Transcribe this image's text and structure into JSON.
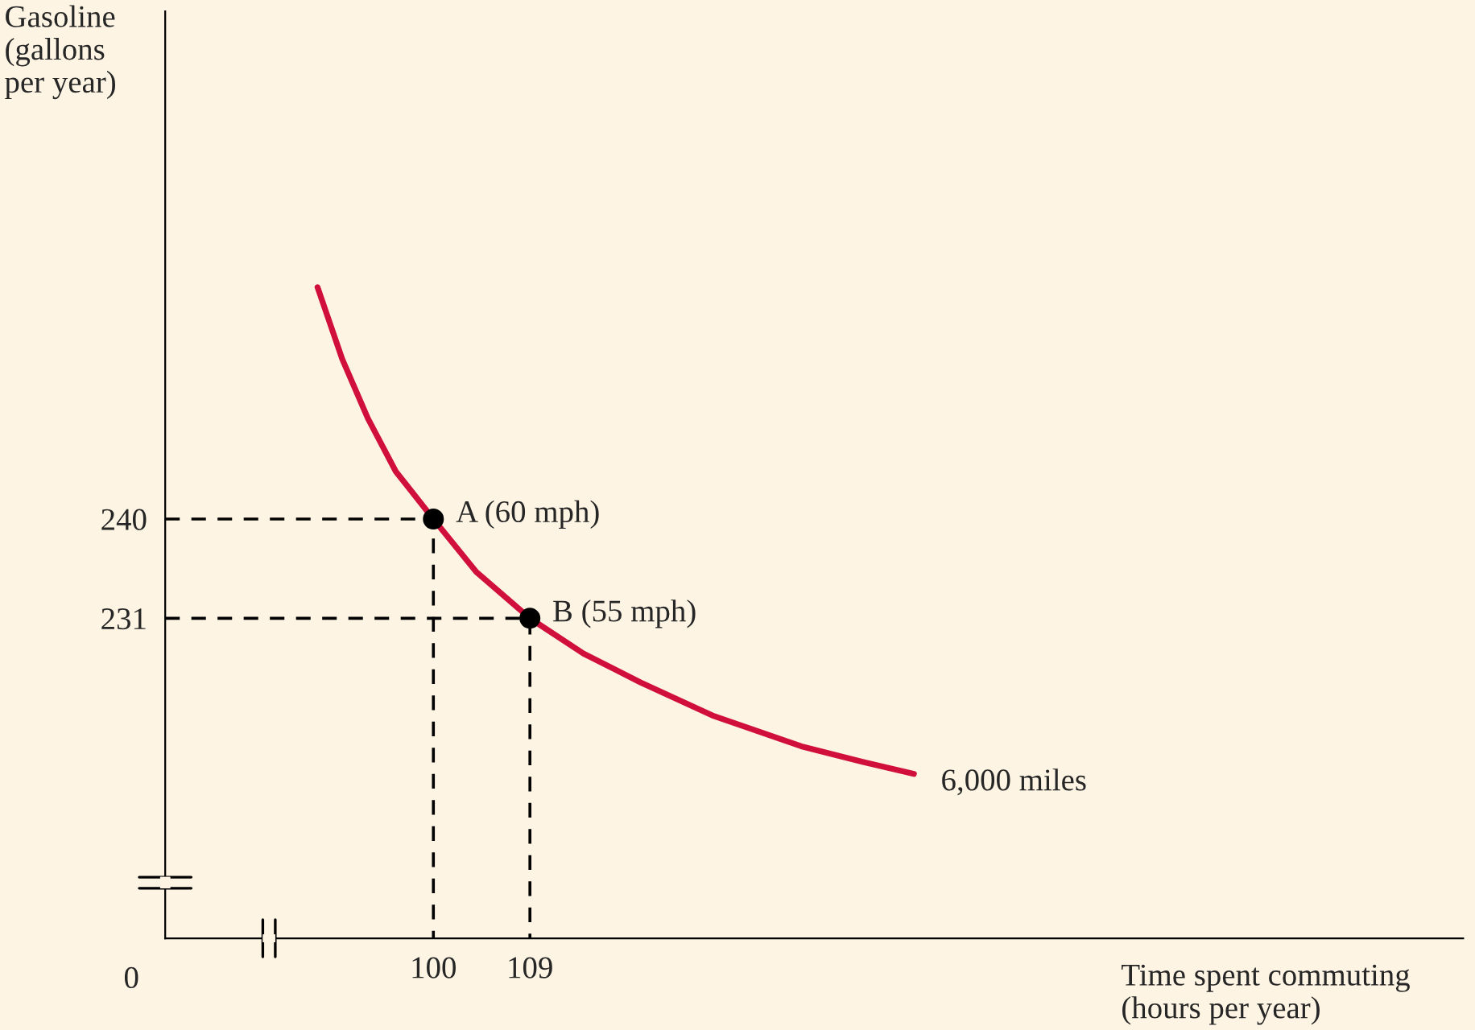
{
  "chart_data": {
    "type": "line",
    "xlabel": "Time spent commuting\n(hours per year)",
    "ylabel": "Gasoline\n(gallons\nper year)",
    "xlim": [
      75,
      196
    ],
    "ylim": [
      202,
      286
    ],
    "xticks": [
      100,
      109
    ],
    "yticks": [
      240,
      231
    ],
    "grid": false,
    "legend": false,
    "series": [
      {
        "name": "6,000 miles",
        "color": "#d0103a",
        "x": [
          89.2,
          91.5,
          93.9,
          96.5,
          100,
          104,
          109,
          114,
          119.3,
          126,
          134.3,
          140,
          144.8
        ],
        "values": [
          261.0,
          254.5,
          249.1,
          244.3,
          240,
          235.2,
          231,
          227.8,
          225.2,
          222.2,
          219.4,
          218.0,
          216.9
        ]
      },
      {
        "type": "scatter",
        "marker": "circle",
        "color": "#000000",
        "x": [
          100,
          109
        ],
        "values": [
          240,
          231
        ]
      },
      {
        "type": "line",
        "line_style": "dashed",
        "color": "#000000",
        "x": [
          75,
          100,
          100
        ],
        "values": [
          240,
          240,
          202
        ]
      },
      {
        "type": "line",
        "line_style": "dashed",
        "color": "#000000",
        "x": [
          75,
          109,
          109
        ],
        "values": [
          231,
          231,
          202
        ]
      }
    ],
    "annotations": [
      {
        "text": "A (60 mph)",
        "x": 100,
        "y": 240
      },
      {
        "text": "B (55 mph)",
        "x": 109,
        "y": 231
      },
      "0"
    ]
  }
}
